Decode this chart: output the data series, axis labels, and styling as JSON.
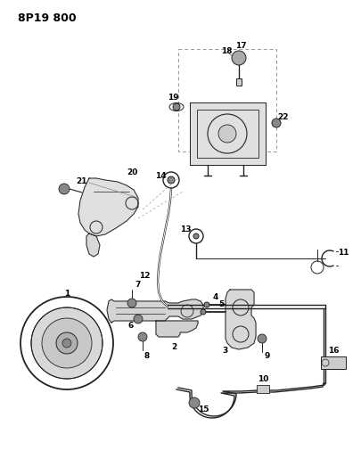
{
  "title": "8P19 800",
  "bg": "#ffffff",
  "lc": "#222222",
  "fig_width": 4.05,
  "fig_height": 5.33,
  "dpi": 100
}
